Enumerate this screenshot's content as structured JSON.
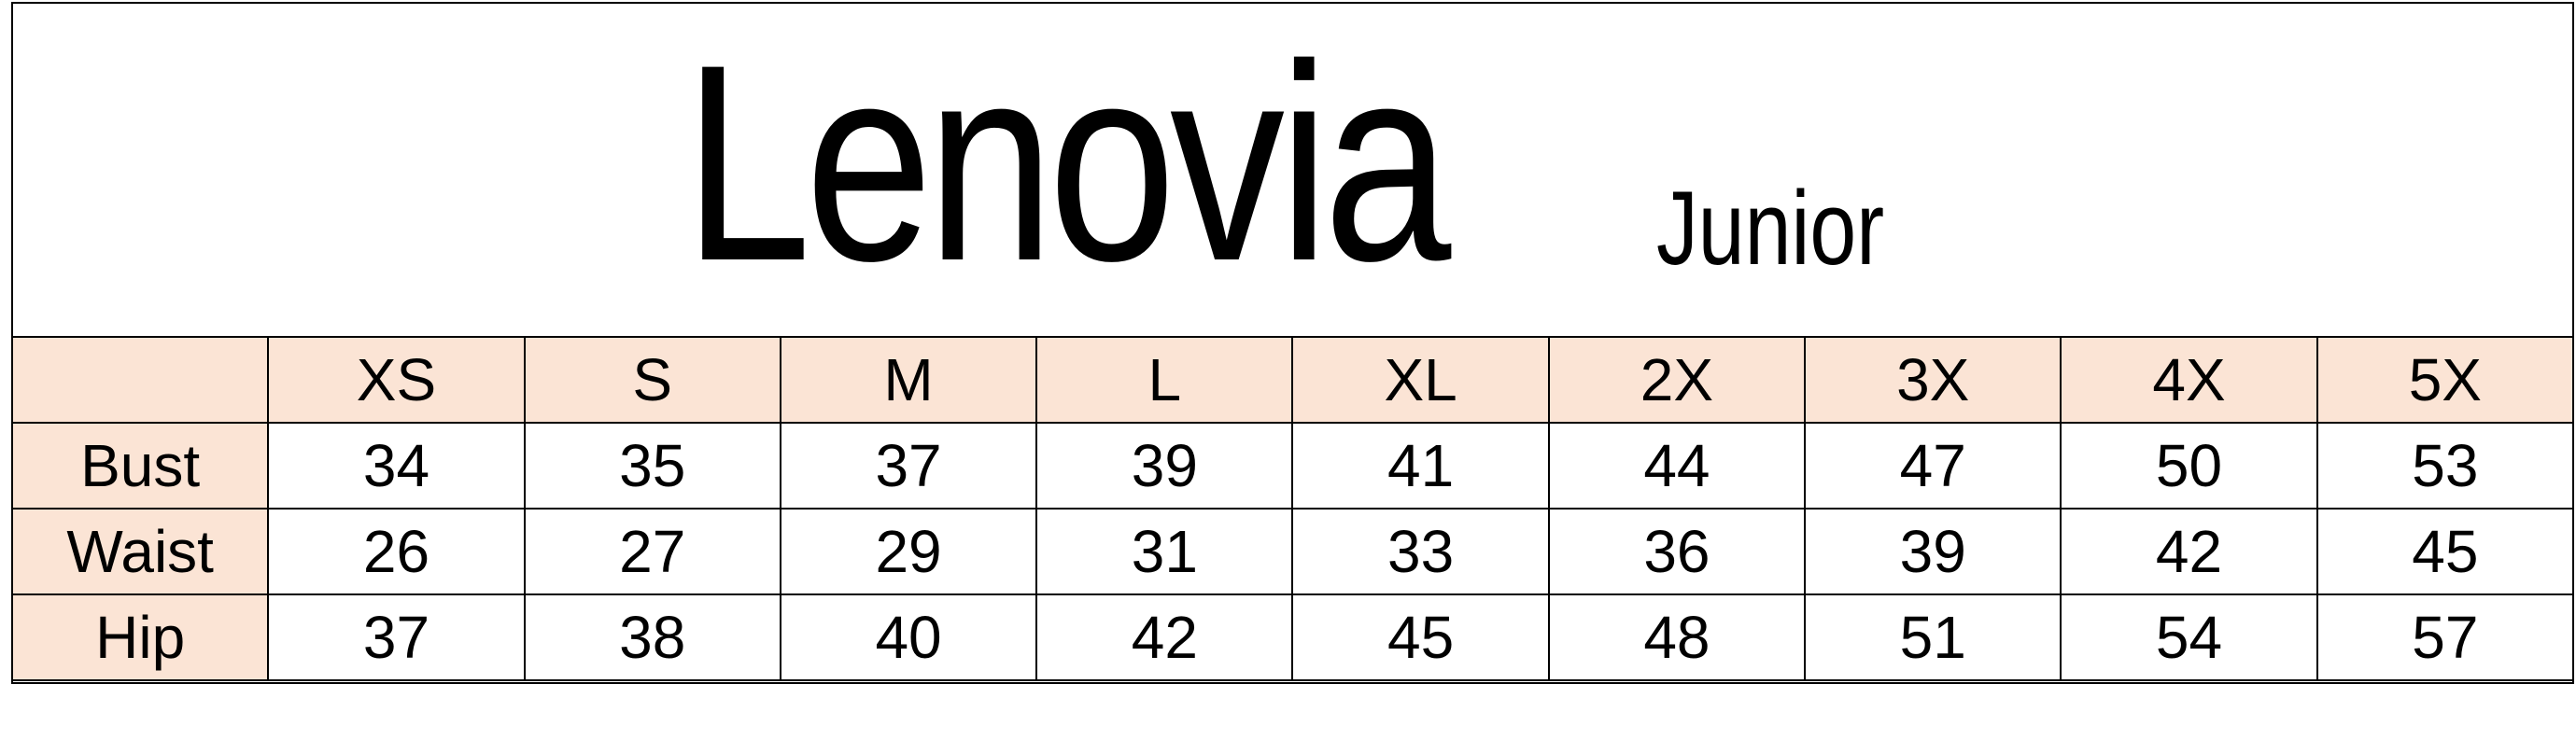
{
  "title": {
    "brand": "Lenovia",
    "subtitle": "Junior"
  },
  "colors": {
    "header_fill": "#FBE4D5",
    "border": "#000000"
  },
  "table": {
    "sizes": [
      "XS",
      "S",
      "M",
      "L",
      "XL",
      "2X",
      "3X",
      "4X",
      "5X"
    ],
    "rows": [
      {
        "label": "Bust",
        "values": [
          "34",
          "35",
          "37",
          "39",
          "41",
          "44",
          "47",
          "50",
          "53"
        ]
      },
      {
        "label": "Waist",
        "values": [
          "26",
          "27",
          "29",
          "31",
          "33",
          "36",
          "39",
          "42",
          "45"
        ]
      },
      {
        "label": "Hip",
        "values": [
          "37",
          "38",
          "40",
          "42",
          "45",
          "48",
          "51",
          "54",
          "57"
        ]
      }
    ]
  }
}
